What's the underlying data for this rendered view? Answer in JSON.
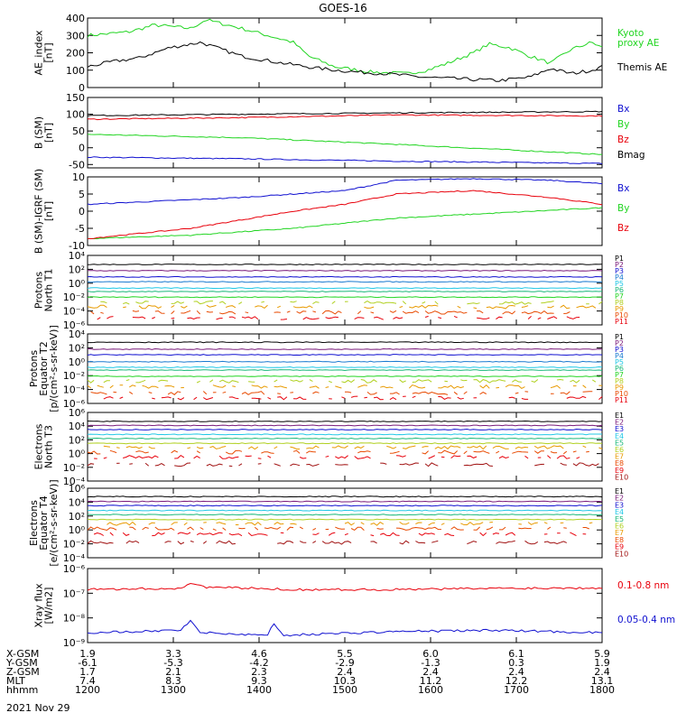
{
  "title": "GOES-16",
  "colors": {
    "black": "#000000",
    "red": "#e8000b",
    "green": "#22d522",
    "blue": "#1010d0",
    "P1": "#000000",
    "P2": "#7a1a7a",
    "P3": "#1010d0",
    "P4": "#1a7ad0",
    "P5": "#22c8e6",
    "P6": "#1ab87a",
    "P7": "#22d522",
    "P8": "#b0d020",
    "P9": "#e89a00",
    "P10": "#e84a00",
    "P11": "#e8000b"
  },
  "chart_data": [
    {
      "type": "line",
      "id": "ae",
      "ylabel": "AE_index\n[nT]",
      "ylim": [
        0,
        400
      ],
      "yticks": [
        "400",
        "300",
        "200",
        "100",
        "0"
      ],
      "ytickvals": [
        400,
        300,
        200,
        100,
        0
      ],
      "series": [
        {
          "name": "Kyoto\nproxy AE",
          "color": "#22d522",
          "pts": [
            [
              0,
              300
            ],
            [
              0.08,
              320
            ],
            [
              0.13,
              360
            ],
            [
              0.2,
              340
            ],
            [
              0.23,
              390
            ],
            [
              0.3,
              340
            ],
            [
              0.35,
              300
            ],
            [
              0.4,
              260
            ],
            [
              0.43,
              180
            ],
            [
              0.48,
              120
            ],
            [
              0.55,
              90
            ],
            [
              0.62,
              80
            ],
            [
              0.66,
              100
            ],
            [
              0.7,
              140
            ],
            [
              0.75,
              200
            ],
            [
              0.78,
              250
            ],
            [
              0.82,
              230
            ],
            [
              0.86,
              180
            ],
            [
              0.9,
              140
            ],
            [
              0.94,
              220
            ],
            [
              0.98,
              260
            ],
            [
              1,
              230
            ]
          ]
        },
        {
          "name": "Themis AE",
          "color": "#000000",
          "pts": [
            [
              0,
              120
            ],
            [
              0.05,
              150
            ],
            [
              0.1,
              170
            ],
            [
              0.16,
              230
            ],
            [
              0.22,
              260
            ],
            [
              0.3,
              180
            ],
            [
              0.38,
              140
            ],
            [
              0.45,
              110
            ],
            [
              0.52,
              90
            ],
            [
              0.58,
              80
            ],
            [
              0.65,
              60
            ],
            [
              0.72,
              50
            ],
            [
              0.8,
              40
            ],
            [
              0.86,
              60
            ],
            [
              0.9,
              110
            ],
            [
              0.94,
              80
            ],
            [
              0.98,
              100
            ],
            [
              1,
              120
            ]
          ]
        }
      ]
    },
    {
      "type": "line",
      "id": "bsm",
      "ylabel": "B (SM)\n[nT]",
      "ylim": [
        -60,
        150
      ],
      "yticks": [
        "150",
        "100",
        "50",
        "0",
        "-50"
      ],
      "ytickvals": [
        150,
        100,
        50,
        0,
        -50
      ],
      "series": [
        {
          "name": "Bx",
          "color": "#1010d0",
          "pts": [
            [
              0,
              -28
            ],
            [
              0.3,
              -33
            ],
            [
              0.6,
              -40
            ],
            [
              1,
              -47
            ]
          ]
        },
        {
          "name": "By",
          "color": "#22d522",
          "pts": [
            [
              0,
              40
            ],
            [
              0.3,
              30
            ],
            [
              0.6,
              10
            ],
            [
              1,
              -20
            ]
          ]
        },
        {
          "name": "Bz",
          "color": "#e8000b",
          "pts": [
            [
              0,
              85
            ],
            [
              0.3,
              90
            ],
            [
              0.6,
              98
            ],
            [
              1,
              95
            ]
          ]
        },
        {
          "name": "Bmag",
          "color": "#000000",
          "pts": [
            [
              0,
              96
            ],
            [
              0.3,
              100
            ],
            [
              0.6,
              104
            ],
            [
              1,
              108
            ]
          ]
        }
      ]
    },
    {
      "type": "line",
      "id": "bigrf",
      "ylabel": "B (SM)-IGRF (SM)\n[nT]",
      "ylim": [
        -10,
        10
      ],
      "yticks": [
        "10",
        "5",
        "0",
        "-5",
        "-10"
      ],
      "ytickvals": [
        10,
        5,
        0,
        -5,
        -10
      ],
      "series": [
        {
          "name": "Bx",
          "color": "#1010d0",
          "pts": [
            [
              0,
              2
            ],
            [
              0.15,
              3
            ],
            [
              0.3,
              4
            ],
            [
              0.5,
              6
            ],
            [
              0.6,
              9
            ],
            [
              0.75,
              9.5
            ],
            [
              0.9,
              9
            ],
            [
              1,
              8
            ]
          ]
        },
        {
          "name": "By",
          "color": "#22d522",
          "pts": [
            [
              0,
              -8
            ],
            [
              0.2,
              -7
            ],
            [
              0.4,
              -5
            ],
            [
              0.6,
              -2
            ],
            [
              0.8,
              -0.5
            ],
            [
              1,
              1
            ]
          ]
        },
        {
          "name": "Bz",
          "color": "#e8000b",
          "pts": [
            [
              0,
              -8
            ],
            [
              0.2,
              -5
            ],
            [
              0.4,
              0
            ],
            [
              0.5,
              2
            ],
            [
              0.6,
              5
            ],
            [
              0.75,
              6
            ],
            [
              0.9,
              4
            ],
            [
              1,
              2
            ]
          ]
        }
      ]
    },
    {
      "type": "line",
      "id": "pn",
      "ylabel": "Protons\nNorth T1",
      "log": true,
      "ylim": [
        -6,
        4
      ],
      "yticks": [
        "10⁴",
        "10²",
        "10⁰",
        "10⁻²",
        "10⁻⁴",
        "10⁻⁶"
      ],
      "ytickvals": [
        4,
        2,
        0,
        -2,
        -4,
        -6
      ],
      "legend": [
        "P1",
        "P2",
        "P3",
        "P4",
        "P5",
        "P6",
        "P7",
        "P8",
        "P9",
        "P10",
        "P11"
      ],
      "levels": [
        2.7,
        1.8,
        0.9,
        0.2,
        -0.7,
        -1.2,
        -2.0,
        -2.8,
        -3.4,
        -4.2,
        -5.0
      ]
    },
    {
      "type": "line",
      "id": "pe",
      "ylabel": "Protons\nEquator T2\n[p/(cm²-s-sr-keV)]",
      "log": true,
      "ylim": [
        -6,
        4
      ],
      "yticks": [
        "10⁴",
        "10²",
        "10⁰",
        "10⁻²",
        "10⁻⁴",
        "10⁻⁶"
      ],
      "ytickvals": [
        4,
        2,
        0,
        -2,
        -4,
        -6
      ],
      "legend": [
        "P1",
        "P2",
        "P3",
        "P4",
        "P5",
        "P6",
        "P7",
        "P8",
        "P9",
        "P10",
        "P11"
      ],
      "levels": [
        2.8,
        1.8,
        1.0,
        0.0,
        -0.8,
        -1.2,
        -2.1,
        -2.8,
        -3.6,
        -4.5,
        -5.2
      ]
    },
    {
      "type": "line",
      "id": "en",
      "ylabel": "Electrons\nNorth T3",
      "log": true,
      "ylim": [
        -4,
        6
      ],
      "yticks": [
        "10⁶",
        "10⁴",
        "10²",
        "10⁰",
        "10⁻²",
        "10⁻⁴"
      ],
      "ytickvals": [
        6,
        4,
        2,
        0,
        -2,
        -4
      ],
      "legend": [
        "E1",
        "E2",
        "E3",
        "E4",
        "E5",
        "E6",
        "E7",
        "E8",
        "E9",
        "E10"
      ],
      "levels": [
        4.7,
        4.1,
        3.5,
        2.8,
        2.2,
        1.5,
        0.9,
        0.2,
        -0.5,
        -1.6
      ]
    },
    {
      "type": "line",
      "id": "ee",
      "ylabel": "Electrons\nEquator T4\n[e/(cm²-s-sr-keV)]",
      "log": true,
      "ylim": [
        -4,
        6
      ],
      "yticks": [
        "10⁶",
        "10⁴",
        "10²",
        "10⁰",
        "10⁻²",
        "10⁻⁴"
      ],
      "ytickvals": [
        6,
        4,
        2,
        0,
        -2,
        -4
      ],
      "legend": [
        "E1",
        "E2",
        "E3",
        "E4",
        "E5",
        "E6",
        "E7",
        "E8",
        "E9",
        "E10"
      ],
      "levels": [
        4.8,
        4.1,
        3.5,
        2.8,
        2.2,
        1.5,
        0.9,
        0.2,
        -0.6,
        -1.8
      ]
    },
    {
      "type": "line",
      "id": "xray",
      "ylabel": "Xray flux\n[W/m2]",
      "log": true,
      "ylim": [
        -9,
        -6
      ],
      "yticks": [
        "10⁻⁶",
        "10⁻⁷",
        "10⁻⁸",
        "10⁻⁹"
      ],
      "ytickvals": [
        -6,
        -7,
        -8,
        -9
      ],
      "series": [
        {
          "name": "0.1-0.8 nm",
          "color": "#e8000b",
          "pts": [
            [
              0,
              -6.85
            ],
            [
              0.18,
              -6.8
            ],
            [
              0.2,
              -6.6
            ],
            [
              0.23,
              -6.75
            ],
            [
              0.4,
              -6.85
            ],
            [
              0.6,
              -6.85
            ],
            [
              0.8,
              -6.8
            ],
            [
              1,
              -6.78
            ]
          ]
        },
        {
          "name": "0.05-0.4 nm",
          "color": "#1010d0",
          "pts": [
            [
              0,
              -8.6
            ],
            [
              0.18,
              -8.5
            ],
            [
              0.2,
              -8.1
            ],
            [
              0.22,
              -8.6
            ],
            [
              0.35,
              -8.7
            ],
            [
              0.36,
              -8.2
            ],
            [
              0.38,
              -8.7
            ],
            [
              0.6,
              -8.55
            ],
            [
              0.8,
              -8.5
            ],
            [
              1,
              -8.6
            ]
          ]
        }
      ]
    }
  ],
  "xaxis": {
    "times": [
      "1200",
      "1300",
      "1400",
      "1500",
      "1600",
      "1700",
      "1800"
    ],
    "rows": [
      {
        "label": "X-GSM",
        "values": [
          "1.9",
          "3.3",
          "4.6",
          "5.5",
          "6.0",
          "6.1",
          "5.9"
        ]
      },
      {
        "label": "Y-GSM",
        "values": [
          "-6.1",
          "-5.3",
          "-4.2",
          "-2.9",
          "-1.3",
          "0.3",
          "1.9"
        ]
      },
      {
        "label": "Z-GSM",
        "values": [
          "1.7",
          "2.1",
          "2.3",
          "2.4",
          "2.4",
          "2.4",
          "2.4"
        ]
      },
      {
        "label": "MLT",
        "values": [
          "7.4",
          "8.3",
          "9.3",
          "10.3",
          "11.2",
          "12.2",
          "13.1"
        ]
      },
      {
        "label": "hhmm",
        "values": [
          "1200",
          "1300",
          "1400",
          "1500",
          "1600",
          "1700",
          "1800"
        ]
      }
    ],
    "date": "2021 Nov 29"
  }
}
